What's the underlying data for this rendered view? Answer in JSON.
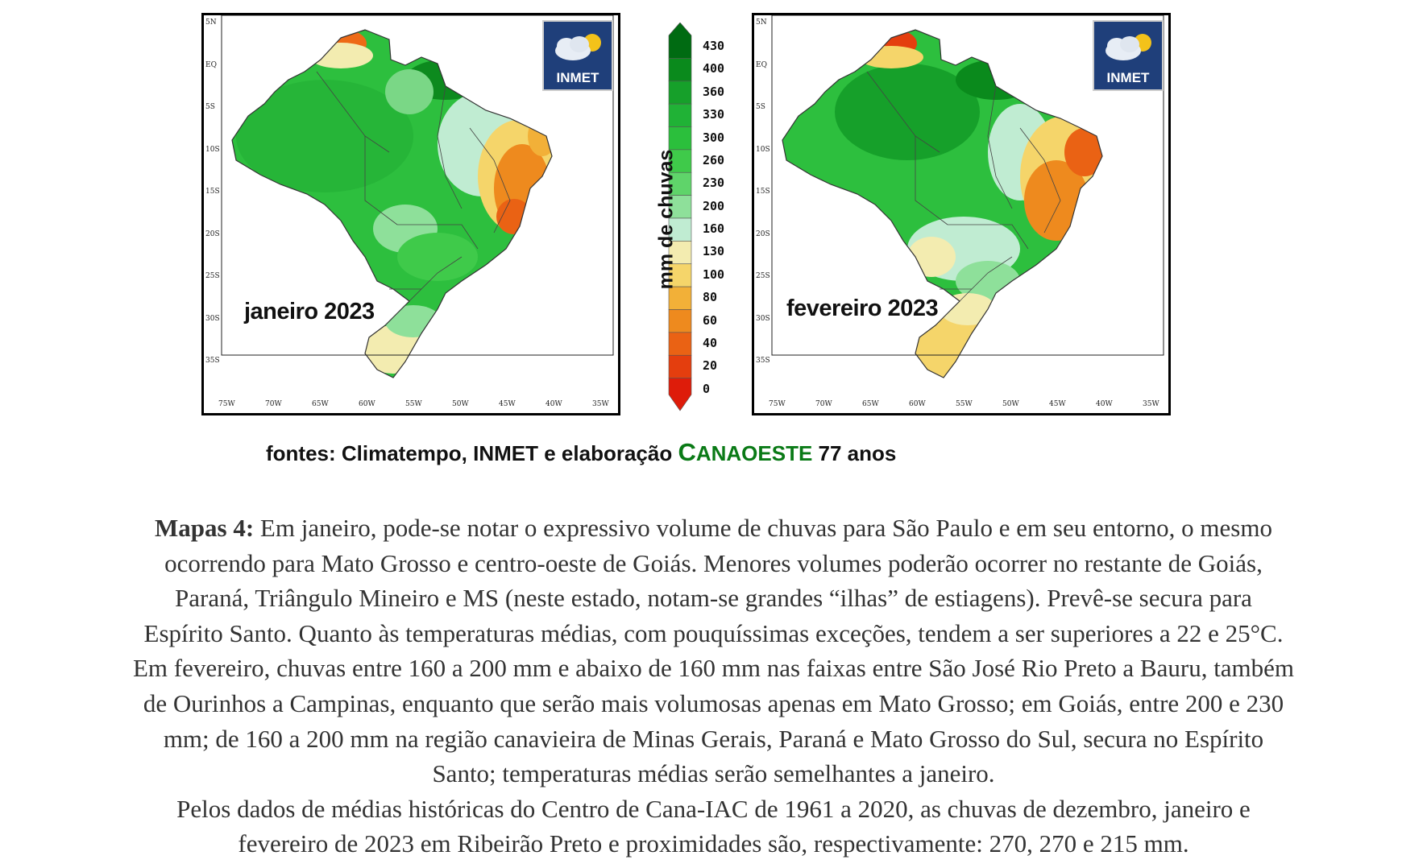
{
  "maps": [
    {
      "title": "janeiro 2023",
      "logo_text": "INMET",
      "variant": "jan"
    },
    {
      "title": "fevereiro 2023",
      "logo_text": "INMET",
      "variant": "feb"
    }
  ],
  "lat_labels": [
    "5N",
    "EQ",
    "5S",
    "10S",
    "15S",
    "20S",
    "25S",
    "30S",
    "35S"
  ],
  "lon_labels": [
    "75W",
    "70W",
    "65W",
    "60W",
    "55W",
    "50W",
    "45W",
    "40W",
    "35W"
  ],
  "legend": {
    "label": "mm de chuvas",
    "ticks": [
      "430",
      "400",
      "360",
      "330",
      "300",
      "260",
      "230",
      "200",
      "160",
      "130",
      "100",
      "80",
      "60",
      "40",
      "20",
      "0"
    ],
    "colors": [
      "#006b12",
      "#0a8a1c",
      "#16a02a",
      "#20b236",
      "#2bbf3c",
      "#3fca4a",
      "#5fd46a",
      "#8ee09a",
      "#c0ecd2",
      "#f3ecb0",
      "#f5d56a",
      "#f2b038",
      "#ee8a1e",
      "#ea6214",
      "#e43e0e",
      "#de1c0a"
    ]
  },
  "sources": {
    "prefix": "fontes: Climatempo, INMET e elaboração ",
    "brand_first": "C",
    "brand_rest": "ANAOESTE",
    "suffix": " 77 anos"
  },
  "caption": {
    "lead": "Mapas 4:",
    "line1": " Em janeiro, pode-se notar o expressivo volume de chuvas para São Paulo e em seu entorno, o mesmo",
    "line2": "ocorrendo para Mato Grosso e centro-oeste de Goiás. Menores volumes poderão ocorrer no restante de Goiás,",
    "line3": "Paraná, Triângulo Mineiro e MS (neste estado, notam-se grandes “ilhas” de estiagens). Prevê-se secura para",
    "line4": "Espírito Santo. Quanto às temperaturas médias, com pouquíssimas exceções, tendem a ser superiores a 22 e 25°C.",
    "line5": "Em fevereiro, chuvas entre 160 a 200 mm e abaixo de 160 mm nas faixas entre São José Rio Preto a Bauru, também",
    "line6": "de Ourinhos a Campinas, enquanto que serão mais volumosas apenas em Mato Grosso; em Goiás, entre 200 e 230",
    "line7": "mm; de 160 a 200 mm na região canavieira de Minas Gerais, Paraná e Mato Grosso do Sul, secura no Espírito",
    "line8": "Santo; temperaturas médias serão semelhantes a janeiro.",
    "line9": "Pelos dados de médias históricas do Centro de Cana-IAC de 1961 a 2020, as chuvas de dezembro, janeiro e",
    "line10": "fevereiro de 2023 em Ribeirão Preto e proximidades são, respectivamente: 270, 270 e 215 mm."
  }
}
